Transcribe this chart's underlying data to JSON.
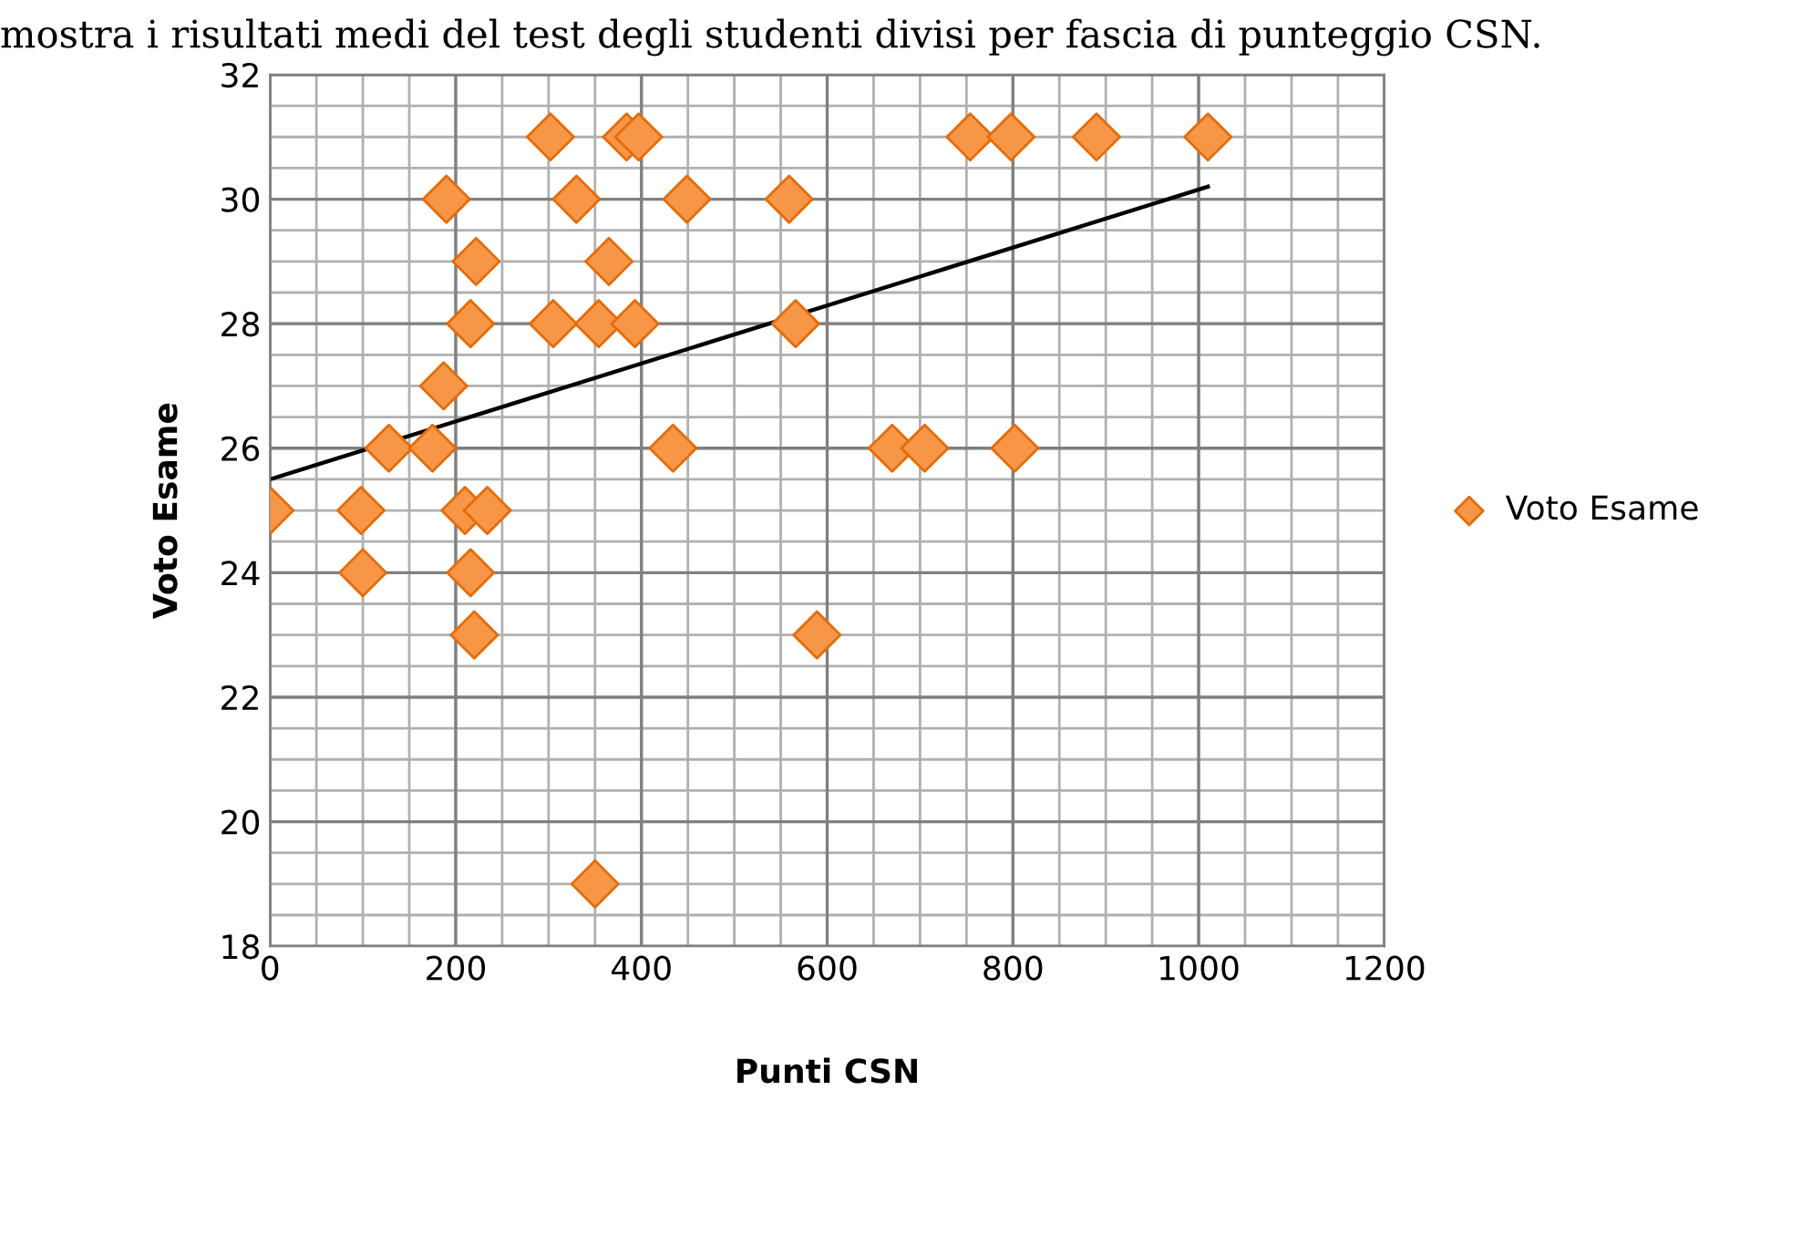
{
  "chart_data": {
    "type": "scatter",
    "annotations": [
      "mostra i risultati medi del test degli studenti divisi per fascia di punteggio CSN."
    ],
    "xlabel": "Punti CSN",
    "ylabel": "Voto Esame",
    "xlim": [
      0,
      1200
    ],
    "xticks": [
      0,
      200,
      400,
      600,
      800,
      1000,
      1200
    ],
    "ylim": [
      18,
      32
    ],
    "yticks": [
      18,
      20,
      22,
      24,
      26,
      28,
      30,
      32
    ],
    "grid": true,
    "legend": "right",
    "series": [
      {
        "name": "Voto Esame",
        "color": "#f79646",
        "marker": "diamond",
        "x": [
          0,
          98,
          100,
          128,
          175,
          187,
          190,
          210,
          216,
          216,
          220,
          222,
          234,
          302,
          305,
          330,
          350,
          354,
          365,
          384,
          393,
          397,
          434,
          449,
          559,
          566,
          589,
          670,
          705,
          754,
          798,
          802,
          890,
          1010
        ],
        "values": [
          25,
          25,
          24,
          26,
          26,
          27,
          30,
          25,
          24,
          28,
          23,
          29,
          25,
          31,
          28,
          30,
          19,
          28,
          29,
          31,
          28,
          31,
          26,
          30,
          30,
          28,
          23,
          26,
          26,
          31,
          31,
          26,
          31,
          31
        ]
      },
      {
        "type": "line",
        "color": "#000000",
        "x": [
          0,
          1010
        ],
        "values": [
          25.5,
          30.2
        ]
      }
    ]
  }
}
